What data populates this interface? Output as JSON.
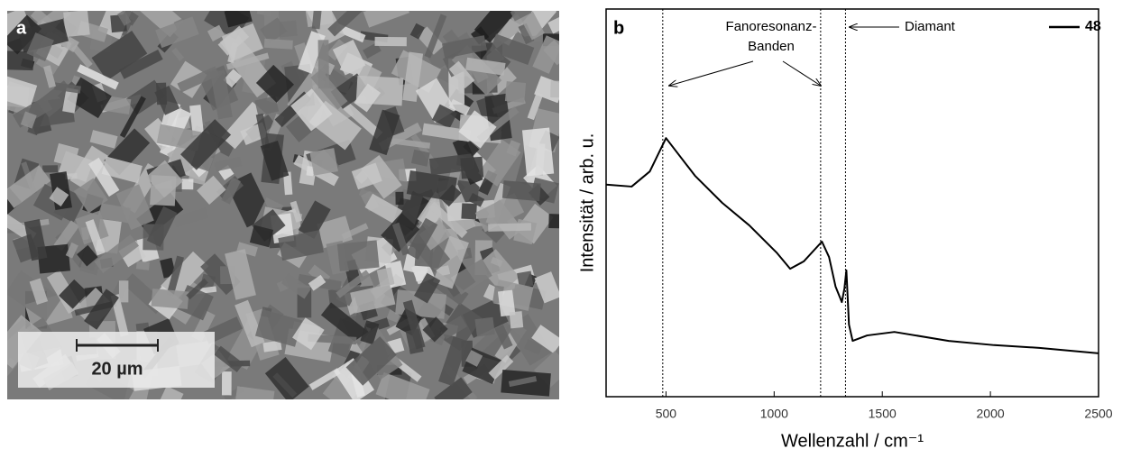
{
  "image_panel": {
    "label": "a",
    "scale_bar": "20 µm"
  },
  "chart_data": {
    "type": "line",
    "panel_label": "b",
    "x_label": "Wellenzahl / cm⁻¹",
    "y_label": "Intensität / arb. u.",
    "xlim": [
      223,
      2500
    ],
    "ylim": [
      0,
      100
    ],
    "xticks": [
      500,
      1000,
      1500,
      2000,
      2500
    ],
    "vlines": [
      485,
      1215,
      1330
    ],
    "annotations": {
      "fano": [
        "Fanoresonanz-",
        "Banden"
      ],
      "diamond": "Diamant"
    },
    "legend": "upper right",
    "series": [
      {
        "name": "48",
        "color": "#000000",
        "x": [
          223,
          341,
          425,
          500,
          634,
          760,
          885,
          1011,
          1074,
          1137,
          1221,
          1254,
          1284,
          1313,
          1325,
          1334,
          1346,
          1363,
          1430,
          1556,
          1807,
          2017,
          2226,
          2500
        ],
        "values": [
          54.7,
          54.2,
          58.1,
          66.7,
          57.0,
          50.0,
          44.2,
          37.2,
          33.0,
          34.9,
          40.0,
          36.0,
          28.4,
          24.4,
          27.9,
          32.6,
          18.6,
          14.4,
          15.8,
          16.7,
          14.4,
          13.3,
          12.6,
          11.2
        ]
      }
    ]
  }
}
